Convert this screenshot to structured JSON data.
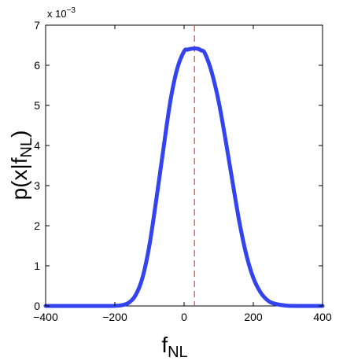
{
  "chart_data": {
    "type": "line",
    "xlabel": {
      "base": "f",
      "sub": "NL"
    },
    "ylabel": {
      "prefix": "p(x|f",
      "sub": "NL",
      "suffix": ")"
    },
    "xlim": [
      -400,
      400
    ],
    "ylim": [
      0,
      0.007
    ],
    "xticks": [
      -400,
      -200,
      0,
      200,
      400
    ],
    "yticks": [
      0,
      1,
      2,
      3,
      4,
      5,
      6,
      7
    ],
    "y_multiplier_label": {
      "prefix": "x 10",
      "exp": "−3"
    },
    "grid": false,
    "series": [
      {
        "color": "#3344ee",
        "x": [
          -400,
          -300,
          -250,
          -200,
          -180,
          -160,
          -140,
          -120,
          -100,
          -80,
          -60,
          -40,
          -20,
          0,
          10,
          20,
          30,
          40,
          50,
          60,
          80,
          100,
          120,
          140,
          160,
          180,
          200,
          220,
          240,
          260,
          300,
          350,
          400
        ],
        "y": [
          0,
          0,
          1e-08,
          3e-06,
          1.8e-05,
          8e-05,
          0.00027,
          0.00071,
          0.00152,
          0.00267,
          0.0039,
          0.00509,
          0.00591,
          0.00635,
          0.00639,
          0.00641,
          0.00642,
          0.00641,
          0.00637,
          0.0063,
          0.00582,
          0.00509,
          0.00413,
          0.00309,
          0.00208,
          0.00127,
          0.0007,
          0.00035,
          0.00015,
          6e-05,
          5e-06,
          0,
          0
        ]
      }
    ],
    "reference_line": {
      "x": 30,
      "color": "#e04040",
      "style": "dashed"
    }
  }
}
